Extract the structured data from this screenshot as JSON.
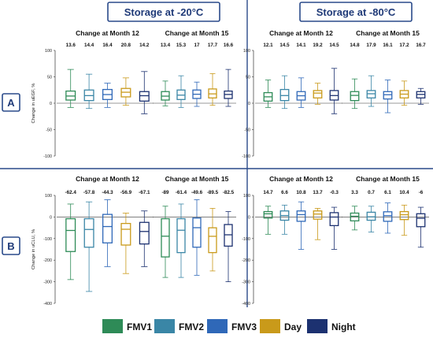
{
  "headers": {
    "left": "Storage at -20°C",
    "right": "Storage at -80°C"
  },
  "rows": {
    "a": "A",
    "b": "B"
  },
  "legend": [
    {
      "name": "FMV1",
      "color": "#2e8b57"
    },
    {
      "name": "FMV2",
      "color": "#3a86a6"
    },
    {
      "name": "FMV3",
      "color": "#2f68b8"
    },
    {
      "name": "Day",
      "color": "#c99a1a"
    },
    {
      "name": "Night",
      "color": "#1c3170"
    }
  ],
  "chart_data": [
    {
      "type": "box",
      "row": "A",
      "storage": "Storage at -20°C",
      "title": "Change at Month 12",
      "ylabel": "Change in uEGF, %",
      "ylim": [
        -100,
        100
      ],
      "yticks": [
        -100,
        -50,
        0,
        50,
        100
      ],
      "categories": [
        "FMV1",
        "FMV2",
        "FMV3",
        "Day",
        "Night"
      ],
      "medians": [
        "13.6",
        "14.4",
        "16.4",
        "20.8",
        "14.2"
      ],
      "boxes": [
        {
          "min": -8,
          "q1": 6,
          "med": 13.6,
          "q3": 23,
          "max": 64
        },
        {
          "min": -10,
          "q1": 5,
          "med": 14.4,
          "q3": 25,
          "max": 55
        },
        {
          "min": -8,
          "q1": 7,
          "med": 16.4,
          "q3": 26,
          "max": 38
        },
        {
          "min": -4,
          "q1": 12,
          "med": 20.8,
          "q3": 28,
          "max": 48
        },
        {
          "min": -20,
          "q1": 4,
          "med": 14.2,
          "q3": 22,
          "max": 60
        }
      ]
    },
    {
      "type": "box",
      "row": "A",
      "storage": "Storage at -20°C",
      "title": "Change at Month 15",
      "ylabel": "",
      "ylim": [
        -100,
        100
      ],
      "yticks": [
        -100,
        -50,
        0,
        50,
        100
      ],
      "categories": [
        "FMV1",
        "FMV2",
        "FMV3",
        "Day",
        "Night"
      ],
      "medians": [
        "13.4",
        "15.3",
        "17",
        "17.7",
        "16.6"
      ],
      "boxes": [
        {
          "min": -5,
          "q1": 6,
          "med": 13.4,
          "q3": 22,
          "max": 42
        },
        {
          "min": -8,
          "q1": 7,
          "med": 15.3,
          "q3": 25,
          "max": 52
        },
        {
          "min": -6,
          "q1": 9,
          "med": 17,
          "q3": 25,
          "max": 40
        },
        {
          "min": -4,
          "q1": 10,
          "med": 17.7,
          "q3": 27,
          "max": 56
        },
        {
          "min": -6,
          "q1": 9,
          "med": 16.6,
          "q3": 23,
          "max": 64
        }
      ]
    },
    {
      "type": "box",
      "row": "A",
      "storage": "Storage at -80°C",
      "title": "Change at Month 12",
      "ylabel": "",
      "ylim": [
        -100,
        100
      ],
      "yticks": [
        -100,
        -50,
        0,
        50,
        100
      ],
      "categories": [
        "FMV1",
        "FMV2",
        "FMV3",
        "Day",
        "Night"
      ],
      "medians": [
        "12.1",
        "14.5",
        "14.1",
        "19.2",
        "14.5"
      ],
      "boxes": [
        {
          "min": -8,
          "q1": 4,
          "med": 12.1,
          "q3": 20,
          "max": 44
        },
        {
          "min": -10,
          "q1": 5,
          "med": 14.5,
          "q3": 26,
          "max": 52
        },
        {
          "min": -8,
          "q1": 6,
          "med": 14.1,
          "q3": 22,
          "max": 48
        },
        {
          "min": -2,
          "q1": 10,
          "med": 19.2,
          "q3": 24,
          "max": 38
        },
        {
          "min": -20,
          "q1": 6,
          "med": 14.5,
          "q3": 24,
          "max": 66
        }
      ]
    },
    {
      "type": "box",
      "row": "A",
      "storage": "Storage at -80°C",
      "title": "Change at Month 15",
      "ylabel": "",
      "ylim": [
        -100,
        100
      ],
      "yticks": [
        -100,
        -50,
        0,
        50,
        100
      ],
      "categories": [
        "FMV1",
        "FMV2",
        "FMV3",
        "Day",
        "Night"
      ],
      "medians": [
        "14.8",
        "17.9",
        "16.1",
        "17.2",
        "16.7"
      ],
      "boxes": [
        {
          "min": -10,
          "q1": 5,
          "med": 14.8,
          "q3": 22,
          "max": 46
        },
        {
          "min": -6,
          "q1": 10,
          "med": 17.9,
          "q3": 24,
          "max": 52
        },
        {
          "min": -18,
          "q1": 8,
          "med": 16.1,
          "q3": 22,
          "max": 44
        },
        {
          "min": -4,
          "q1": 10,
          "med": 17.2,
          "q3": 24,
          "max": 42
        },
        {
          "min": -2,
          "q1": 10,
          "med": 16.7,
          "q3": 22,
          "max": 28
        }
      ]
    },
    {
      "type": "box",
      "row": "B",
      "storage": "Storage at -20°C",
      "title": "Change at Month 12",
      "ylabel": "Change in uCLU, %",
      "ylim": [
        -400,
        100
      ],
      "yticks": [
        -400,
        -300,
        -200,
        -100,
        0,
        100
      ],
      "categories": [
        "FMV1",
        "FMV2",
        "FMV3",
        "Day",
        "Night"
      ],
      "medians": [
        "-62.4",
        "-57.8",
        "-44.3",
        "-56.9",
        "-67.1"
      ],
      "boxes": [
        {
          "min": -290,
          "q1": -160,
          "med": -62.4,
          "q3": -8,
          "max": 60
        },
        {
          "min": -345,
          "q1": -140,
          "med": -57.8,
          "q3": -8,
          "max": 70
        },
        {
          "min": -230,
          "q1": -120,
          "med": -44.3,
          "q3": 12,
          "max": 80
        },
        {
          "min": -262,
          "q1": -130,
          "med": -56.9,
          "q3": -30,
          "max": 18
        },
        {
          "min": -230,
          "q1": -125,
          "med": -67.1,
          "q3": -25,
          "max": 28
        }
      ]
    },
    {
      "type": "box",
      "row": "B",
      "storage": "Storage at -20°C",
      "title": "Change at Month 15",
      "ylabel": "",
      "ylim": [
        -400,
        100
      ],
      "yticks": [
        -400,
        -300,
        -200,
        -100,
        0,
        100
      ],
      "categories": [
        "FMV1",
        "FMV2",
        "FMV3",
        "Day",
        "Night"
      ],
      "medians": [
        "-89",
        "-61.4",
        "-49.6",
        "-89.5",
        "-82.5"
      ],
      "boxes": [
        {
          "min": -280,
          "q1": -185,
          "med": -89,
          "q3": -8,
          "max": 50
        },
        {
          "min": -280,
          "q1": -165,
          "med": -61.4,
          "q3": -8,
          "max": 60
        },
        {
          "min": -270,
          "q1": -140,
          "med": -49.6,
          "q3": -5,
          "max": 80
        },
        {
          "min": -250,
          "q1": -165,
          "med": -89.5,
          "q3": -50,
          "max": 40
        },
        {
          "min": -300,
          "q1": -135,
          "med": -82.5,
          "q3": -35,
          "max": 25
        }
      ]
    },
    {
      "type": "box",
      "row": "B",
      "storage": "Storage at -80°C",
      "title": "Change at Month 12",
      "ylabel": "",
      "ylim": [
        -400,
        100
      ],
      "yticks": [
        -400,
        -300,
        -200,
        -100,
        0,
        100
      ],
      "categories": [
        "FMV1",
        "FMV2",
        "FMV3",
        "Day",
        "Night"
      ],
      "medians": [
        "14.7",
        "6.6",
        "10.8",
        "13.7",
        "-0.3"
      ],
      "boxes": [
        {
          "min": -80,
          "q1": -5,
          "med": 14.7,
          "q3": 25,
          "max": 50
        },
        {
          "min": -80,
          "q1": -15,
          "med": 6.6,
          "q3": 28,
          "max": 55
        },
        {
          "min": -150,
          "q1": -20,
          "med": 10.8,
          "q3": 28,
          "max": 70
        },
        {
          "min": -105,
          "q1": -10,
          "med": 13.7,
          "q3": 28,
          "max": 40
        },
        {
          "min": -150,
          "q1": -40,
          "med": -0.3,
          "q3": 20,
          "max": 45
        }
      ]
    },
    {
      "type": "box",
      "row": "B",
      "storage": "Storage at -80°C",
      "title": "Change at Month 15",
      "ylabel": "",
      "ylim": [
        -400,
        100
      ],
      "yticks": [
        -400,
        -300,
        -200,
        -100,
        0,
        100
      ],
      "categories": [
        "FMV1",
        "FMV2",
        "FMV3",
        "Day",
        "Night"
      ],
      "medians": [
        "3.3",
        "0.7",
        "6.1",
        "10.4",
        "-6"
      ],
      "boxes": [
        {
          "min": -60,
          "q1": -18,
          "med": 3.3,
          "q3": 18,
          "max": 50
        },
        {
          "min": -70,
          "q1": -15,
          "med": 0.7,
          "q3": 22,
          "max": 50
        },
        {
          "min": -75,
          "q1": -20,
          "med": 6.1,
          "q3": 24,
          "max": 65
        },
        {
          "min": -85,
          "q1": -12,
          "med": 10.4,
          "q3": 25,
          "max": 55
        },
        {
          "min": -140,
          "q1": -45,
          "med": -6,
          "q3": 15,
          "max": 45
        }
      ]
    }
  ]
}
